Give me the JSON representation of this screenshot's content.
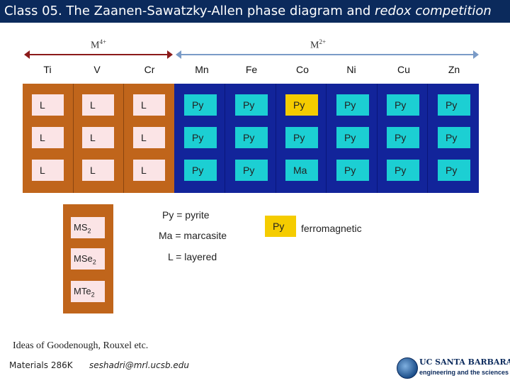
{
  "header": {
    "title_main": "Class 05. The Zaanen-Sawatzky-Allen phase diagram and ",
    "title_italic": "redox competition"
  },
  "ranges": {
    "m4": "M",
    "m4_sup": "4+",
    "m2": "M",
    "m2_sup": "2+"
  },
  "elements": [
    "Ti",
    "V",
    "Cr",
    "Mn",
    "Fe",
    "Co",
    "Ni",
    "Cu",
    "Zn"
  ],
  "grid": {
    "rows": [
      [
        "L",
        "L",
        "L",
        "Py",
        "Py",
        "Py",
        "Py",
        "Py",
        "Py"
      ],
      [
        "L",
        "L",
        "L",
        "Py",
        "Py",
        "Py",
        "Py",
        "Py",
        "Py"
      ],
      [
        "L",
        "L",
        "L",
        "Py",
        "Py",
        "Ma",
        "Py",
        "Py",
        "Py"
      ]
    ],
    "ferromagnetic_cell": "row 1, Co"
  },
  "legend": {
    "compounds": [
      {
        "base": "MS",
        "sub": "2"
      },
      {
        "base": "MSe",
        "sub": "2"
      },
      {
        "base": "MTe",
        "sub": "2"
      }
    ],
    "py": "Py = pyrite",
    "ma": "Ma = marcasite",
    "l": "L = layered",
    "fm_swatch": "Py",
    "fm_label": "ferromagnetic"
  },
  "footer": {
    "credit": "Ideas of Goodenough, Rouxel etc.",
    "course": "Materials 286K",
    "email": "seshadri@mrl.ucsb.edu",
    "logo_name": "UC SANTA BARBARA",
    "logo_sub": "engineering and the sciences"
  },
  "colors": {
    "title_bg": "#0b2a5c",
    "layered_block": "#c0651b",
    "pyrite_block": "#12249a",
    "cell_layered": "#fbe4e6",
    "cell_pyrite": "#1ccfd3",
    "cell_ferromagnetic": "#f5cc00",
    "arrow_m4": "#8b1a1a",
    "arrow_m2": "#7a9bc7"
  }
}
